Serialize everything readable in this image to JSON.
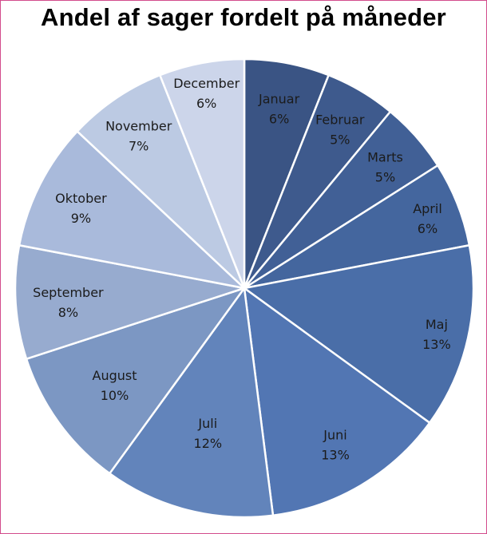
{
  "chart_data": {
    "type": "pie",
    "title": "Andel af sager fordelt på måneder",
    "start_angle_deg": 0,
    "direction": "clockwise",
    "slices": [
      {
        "label": "Januar",
        "value": 6,
        "value_label": "6%",
        "color": "#3a5484",
        "text_color": "#1b1b1b"
      },
      {
        "label": "Februar",
        "value": 5,
        "value_label": "5%",
        "color": "#3e5a8d",
        "text_color": "#1b1b1b"
      },
      {
        "label": "Marts",
        "value": 5,
        "value_label": "5%",
        "color": "#416096",
        "text_color": "#1b1b1b"
      },
      {
        "label": "April",
        "value": 6,
        "value_label": "6%",
        "color": "#44669e",
        "text_color": "#1b1b1b"
      },
      {
        "label": "Maj",
        "value": 13,
        "value_label": "13%",
        "color": "#4a6ea8",
        "text_color": "#1b1b1b"
      },
      {
        "label": "Juni",
        "value": 13,
        "value_label": "13%",
        "color": "#5276b3",
        "text_color": "#1b1b1b"
      },
      {
        "label": "Juli",
        "value": 12,
        "value_label": "12%",
        "color": "#6284bb",
        "text_color": "#1b1b1b"
      },
      {
        "label": "August",
        "value": 10,
        "value_label": "10%",
        "color": "#7c97c3",
        "text_color": "#1b1b1b"
      },
      {
        "label": "September",
        "value": 8,
        "value_label": "8%",
        "color": "#97abcf",
        "text_color": "#1b1b1b"
      },
      {
        "label": "Oktober",
        "value": 9,
        "value_label": "9%",
        "color": "#a9badb",
        "text_color": "#1b1b1b"
      },
      {
        "label": "November",
        "value": 7,
        "value_label": "7%",
        "color": "#bccae3",
        "text_color": "#1b1b1b"
      },
      {
        "label": "December",
        "value": 6,
        "value_label": "6%",
        "color": "#ccd5ea",
        "text_color": "#1b1b1b"
      }
    ]
  }
}
